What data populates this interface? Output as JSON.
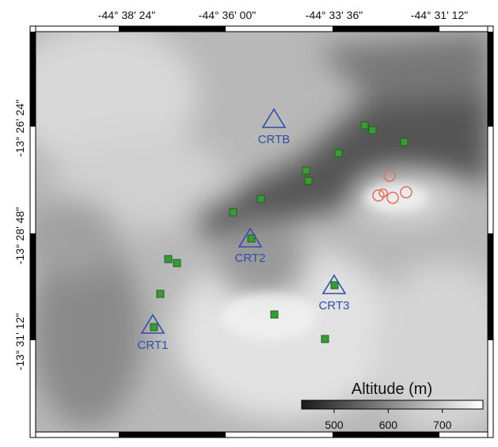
{
  "map": {
    "lon_labels": [
      "-44° 38' 24\"",
      "-44° 36' 00\"",
      "-44° 33' 36\"",
      "-44° 31' 12\""
    ],
    "lat_labels": [
      "-13° 26' 24\"",
      "-13° 28' 48\"",
      "-13° 31' 12\""
    ],
    "stations": [
      "CRTB",
      "CRT2",
      "CRT3",
      "CRT1"
    ],
    "colorbar": {
      "title": "Altitude (m)",
      "range": [
        440,
        775
      ],
      "ticks": [
        500,
        600,
        700
      ]
    }
  }
}
